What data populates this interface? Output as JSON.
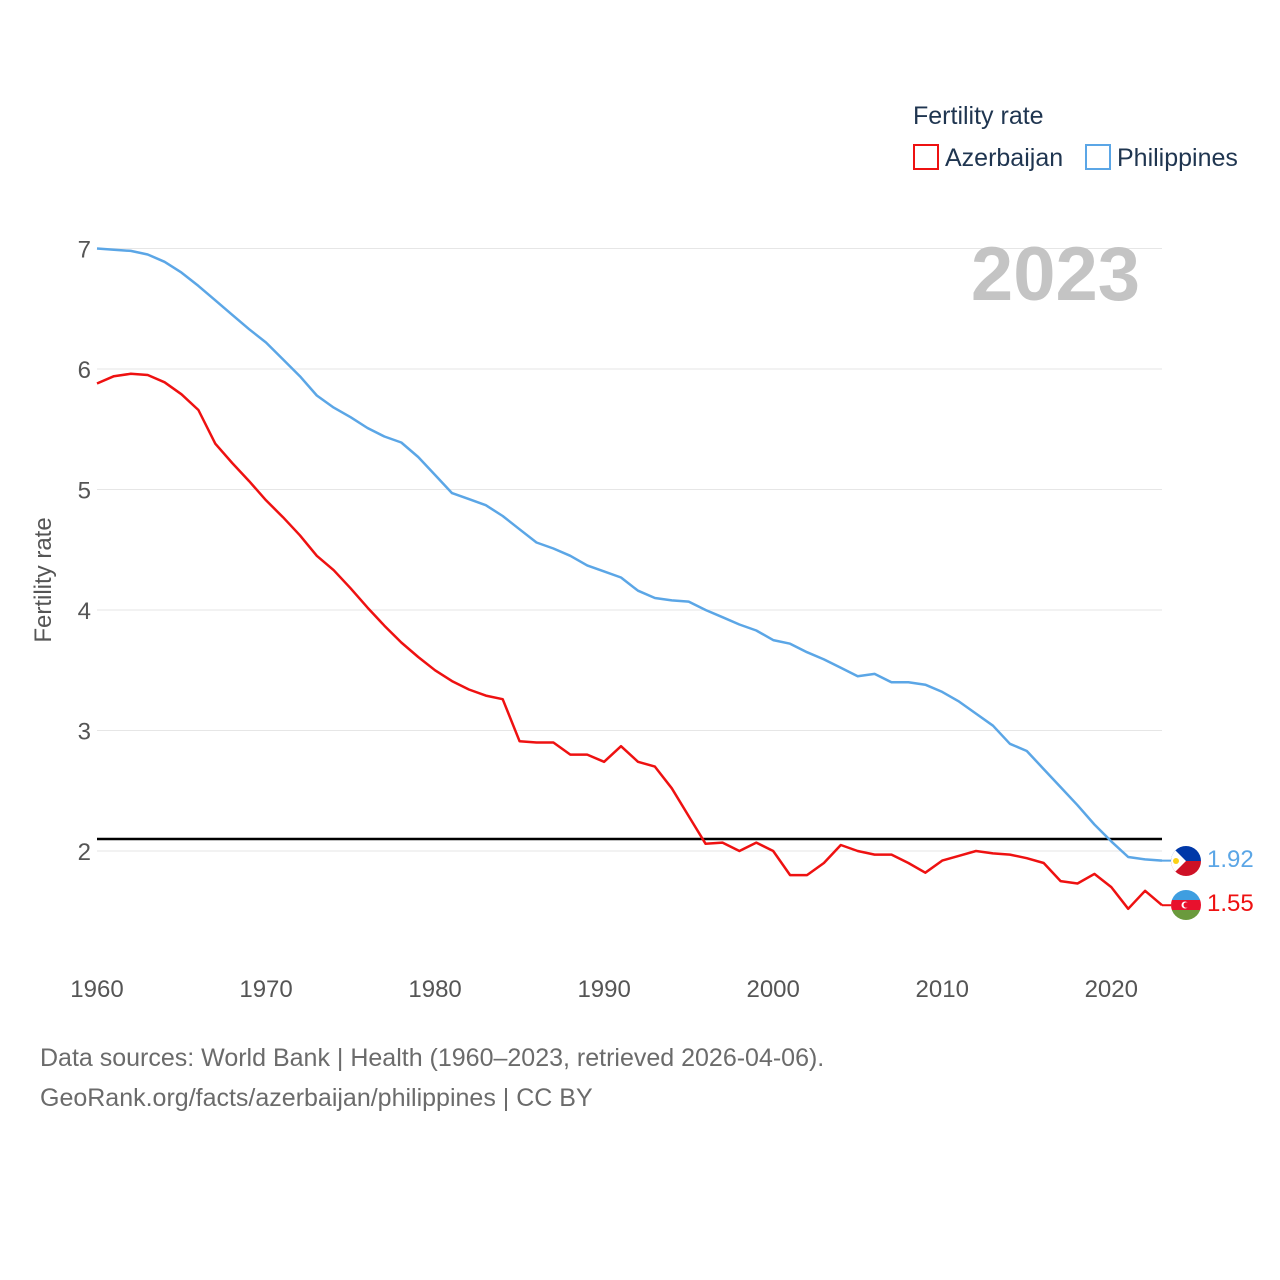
{
  "chart_data": {
    "type": "line",
    "legend_title": "Fertility rate",
    "ylabel": "Fertility rate",
    "current_year_label": "2023",
    "ylim": [
      1.0,
      7.0
    ],
    "xlim": [
      1960,
      2023
    ],
    "y_ticks": [
      2,
      3,
      4,
      5,
      6,
      7
    ],
    "x_ticks": [
      1960,
      1970,
      1980,
      1990,
      2000,
      2010,
      2020
    ],
    "reference_line": {
      "value": 2.1,
      "color": "#000000"
    },
    "x": [
      1960,
      1961,
      1962,
      1963,
      1964,
      1965,
      1966,
      1967,
      1968,
      1969,
      1970,
      1971,
      1972,
      1973,
      1974,
      1975,
      1976,
      1977,
      1978,
      1979,
      1980,
      1981,
      1982,
      1983,
      1984,
      1985,
      1986,
      1987,
      1988,
      1989,
      1990,
      1991,
      1992,
      1993,
      1994,
      1995,
      1996,
      1997,
      1998,
      1999,
      2000,
      2001,
      2002,
      2003,
      2004,
      2005,
      2006,
      2007,
      2008,
      2009,
      2010,
      2011,
      2012,
      2013,
      2014,
      2015,
      2016,
      2017,
      2018,
      2019,
      2020,
      2021,
      2022,
      2023
    ],
    "series": [
      {
        "name": "Azerbaijan",
        "color": "#ee1111",
        "end_label": "1.55",
        "values": [
          5.88,
          5.94,
          5.96,
          5.95,
          5.89,
          5.79,
          5.66,
          5.38,
          5.22,
          5.07,
          4.91,
          4.77,
          4.62,
          4.45,
          4.33,
          4.18,
          4.02,
          3.87,
          3.73,
          3.61,
          3.5,
          3.41,
          3.34,
          3.29,
          3.26,
          2.91,
          2.9,
          2.9,
          2.8,
          2.8,
          2.74,
          2.87,
          2.74,
          2.7,
          2.52,
          2.29,
          2.06,
          2.07,
          2.0,
          2.07,
          2.0,
          1.8,
          1.8,
          1.9,
          2.05,
          2.0,
          1.97,
          1.97,
          1.9,
          1.82,
          1.92,
          1.96,
          2.0,
          1.98,
          1.97,
          1.94,
          1.9,
          1.75,
          1.73,
          1.81,
          1.7,
          1.52,
          1.67,
          1.55
        ]
      },
      {
        "name": "Philippines",
        "color": "#5ba6e6",
        "end_label": "1.92",
        "values": [
          7.0,
          6.99,
          6.98,
          6.95,
          6.89,
          6.8,
          6.69,
          6.57,
          6.45,
          6.33,
          6.22,
          6.08,
          5.94,
          5.78,
          5.68,
          5.6,
          5.51,
          5.44,
          5.39,
          5.27,
          5.12,
          4.97,
          4.92,
          4.87,
          4.78,
          4.67,
          4.56,
          4.51,
          4.45,
          4.37,
          4.32,
          4.27,
          4.16,
          4.1,
          4.08,
          4.07,
          4.0,
          3.94,
          3.88,
          3.83,
          3.75,
          3.72,
          3.65,
          3.59,
          3.52,
          3.45,
          3.47,
          3.4,
          3.4,
          3.38,
          3.32,
          3.24,
          3.14,
          3.04,
          2.89,
          2.83,
          2.68,
          2.53,
          2.38,
          2.22,
          2.08,
          1.95,
          1.93,
          1.92
        ]
      }
    ]
  },
  "footer": {
    "line1": "Data sources: World Bank | Health (1960–2023, retrieved 2026-04-06).",
    "line2": "GeoRank.org/facts/azerbaijan/philippines | CC BY"
  }
}
